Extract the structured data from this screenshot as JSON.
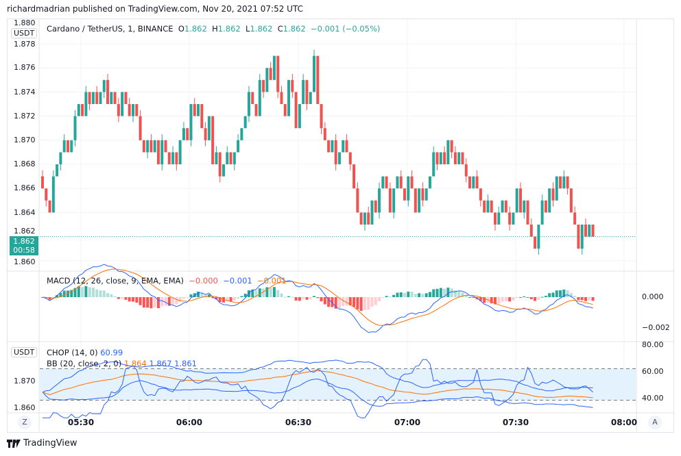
{
  "header": {
    "published": "richardmadrian published on TradingView.com, Nov 20, 2021 07:52 UTC"
  },
  "main": {
    "currency": "USDT",
    "symbol": "Cardano / TetherUS, 1, BINANCE",
    "o_label": "O",
    "o": "1.862",
    "h_label": "H",
    "h": "1.862",
    "l_label": "L",
    "l": "1.862",
    "c_label": "C",
    "c": "1.862",
    "change": "−0.001 (−0.05%)",
    "last_price": "1.862",
    "countdown": "00:58",
    "price_ticks": [
      "1.880",
      "1.878",
      "1.876",
      "1.874",
      "1.872",
      "1.870",
      "1.868",
      "1.866",
      "1.864",
      "1.862",
      "1.860"
    ]
  },
  "macd": {
    "label": "MACD (12, 26, close, 9, EMA, EMA)",
    "hist": "−0.000",
    "macd": "−0.001",
    "signal": "−0.001",
    "ticks": [
      "0.000",
      "−0.002"
    ]
  },
  "chop": {
    "currency": "USDT",
    "label": "CHOP (14, 0)",
    "value": "60.99",
    "bb_label": "BB (20, close, 2, 0)",
    "bb_basis": "1.864",
    "bb_upper": "1.867",
    "bb_lower": "1.861",
    "ticks": [
      "80.00",
      "60.00",
      "40.00"
    ],
    "price_ticks": [
      "1.870",
      "1.860"
    ]
  },
  "time_ticks": [
    "05:30",
    "06:00",
    "06:30",
    "07:00",
    "07:30",
    "08:00"
  ],
  "buttons": {
    "z": "Z",
    "a": "A"
  },
  "footer": {
    "brand": "TradingView"
  },
  "colors": {
    "up": "#26a69a",
    "down": "#ef5350",
    "macd": "#2962ff",
    "signal": "#ff6d00",
    "band": "#e3f2fd"
  },
  "chart_data": {
    "type": "candlestick",
    "interval": "1m",
    "start": "05:20",
    "end": "07:52",
    "ylim": [
      1.86,
      1.878
    ],
    "close": [
      1.866,
      1.865,
      1.864,
      1.867,
      1.868,
      1.869,
      1.87,
      1.869,
      1.87,
      1.872,
      1.873,
      1.872,
      1.874,
      1.873,
      1.874,
      1.873,
      1.874,
      1.875,
      1.873,
      1.874,
      1.873,
      1.872,
      1.874,
      1.873,
      1.872,
      1.873,
      1.872,
      1.87,
      1.869,
      1.87,
      1.869,
      1.87,
      1.868,
      1.87,
      1.869,
      1.868,
      1.869,
      1.868,
      1.87,
      1.871,
      1.87,
      1.873,
      1.872,
      1.873,
      1.871,
      1.87,
      1.872,
      1.868,
      1.869,
      1.867,
      1.868,
      1.869,
      1.868,
      1.869,
      1.87,
      1.871,
      1.872,
      1.874,
      1.873,
      1.872,
      1.875,
      1.874,
      1.876,
      1.875,
      1.877,
      1.874,
      1.873,
      1.872,
      1.875,
      1.874,
      1.871,
      1.873,
      1.875,
      1.873,
      1.874,
      1.877,
      1.873,
      1.871,
      1.87,
      1.869,
      1.87,
      1.868,
      1.869,
      1.87,
      1.869,
      1.868,
      1.866,
      1.864,
      1.863,
      1.864,
      1.863,
      1.865,
      1.864,
      1.866,
      1.867,
      1.866,
      1.864,
      1.866,
      1.867,
      1.866,
      1.865,
      1.867,
      1.866,
      1.864,
      1.866,
      1.865,
      1.866,
      1.867,
      1.869,
      1.868,
      1.869,
      1.868,
      1.87,
      1.869,
      1.868,
      1.869,
      1.868,
      1.867,
      1.866,
      1.867,
      1.866,
      1.865,
      1.864,
      1.865,
      1.864,
      1.863,
      1.864,
      1.865,
      1.864,
      1.863,
      1.864,
      1.866,
      1.864,
      1.865,
      1.863,
      1.862,
      1.861,
      1.863,
      1.865,
      1.864,
      1.866,
      1.865,
      1.867,
      1.866,
      1.867,
      1.866,
      1.864,
      1.863,
      1.861,
      1.863,
      1.862,
      1.863,
      1.862
    ]
  }
}
